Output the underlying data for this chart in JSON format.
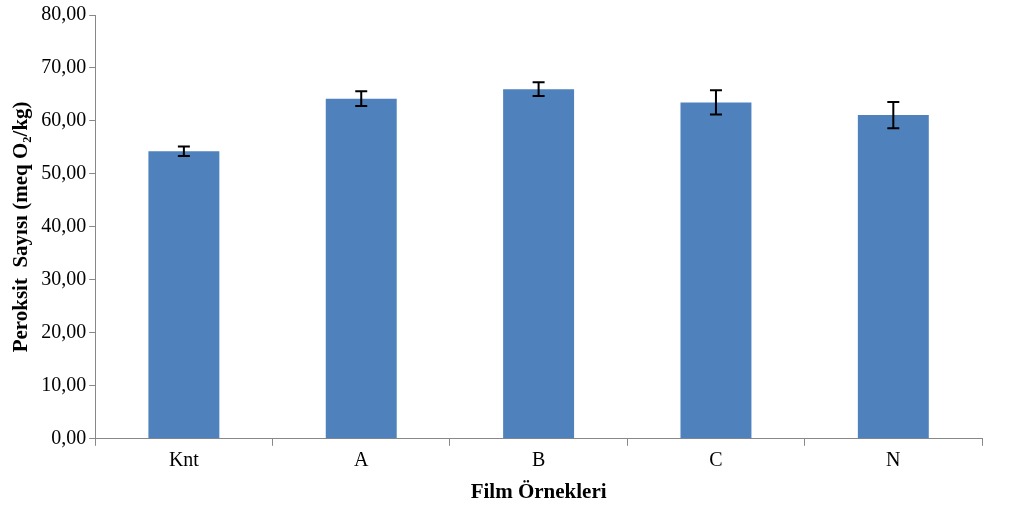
{
  "chart_data": {
    "type": "bar",
    "xlabel": "Film Örnekleri",
    "ylabel": "Peroksit  Sayısı (meq O₂/kg)",
    "categories": [
      "Knt",
      "A",
      "B",
      "C",
      "N"
    ],
    "values": [
      54.3,
      64.2,
      66.0,
      63.5,
      61.1
    ],
    "errors": [
      0.9,
      1.4,
      1.3,
      2.3,
      2.5
    ],
    "color": "#4f81bd",
    "ylim": [
      0,
      80
    ],
    "yticks": [
      {
        "value": 0,
        "label": "0,00"
      },
      {
        "value": 10,
        "label": "10,00"
      },
      {
        "value": 20,
        "label": "20,00"
      },
      {
        "value": 30,
        "label": "30,00"
      },
      {
        "value": 40,
        "label": "40,00"
      },
      {
        "value": 50,
        "label": "50,00"
      },
      {
        "value": 60,
        "label": "60,00"
      },
      {
        "value": 70,
        "label": "70,00"
      },
      {
        "value": 80,
        "label": "80,00"
      }
    ],
    "grid": false,
    "legend": false
  }
}
